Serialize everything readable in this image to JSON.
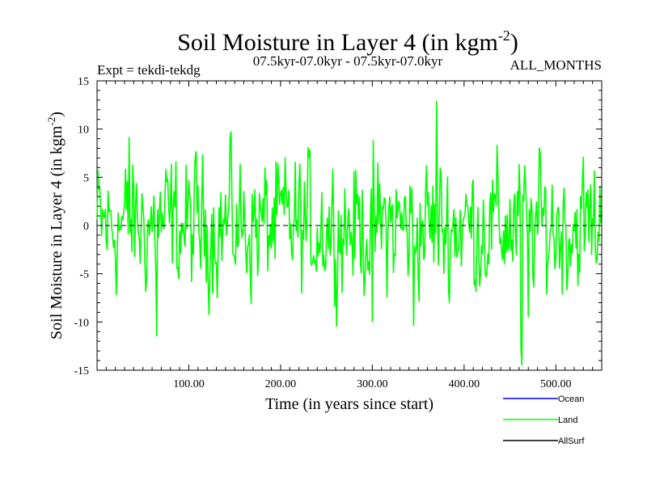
{
  "chart_data": {
    "type": "line",
    "title": "Soil Moisture in Layer 4 (in kgm",
    "title_sup": "-2",
    "title_close": ")",
    "subtitle_left": "Expt = tekdi-tekdg",
    "subtitle_center": "07.5kyr-07.0kyr - 07.5kyr-07.0kyr",
    "subtitle_right": "ALL_MONTHS",
    "xlabel": "Time (in years since start)",
    "ylabel": "Soil Moisture in Layer 4 (in kgm",
    "ylabel_sup": "-2",
    "ylabel_close": ")",
    "xlim": [
      0,
      550
    ],
    "ylim": [
      -15,
      15
    ],
    "x_ticks": [
      100,
      200,
      300,
      400,
      500
    ],
    "x_tick_labels": [
      "100.00",
      "200.00",
      "300.00",
      "400.00",
      "500.00"
    ],
    "y_ticks": [
      -15,
      -10,
      -5,
      0,
      5,
      10,
      15
    ],
    "y_tick_labels": [
      "-15",
      "-10",
      "-5",
      "0",
      "5",
      "10",
      "15"
    ],
    "zero_line": true,
    "legend_position": "bottom-right",
    "series": [
      {
        "name": "Ocean",
        "color": "#0000ff",
        "values": []
      },
      {
        "name": "Land",
        "color": "#00ff00",
        "x_start": 0,
        "x_step": 1,
        "approx_range": [
          -14.5,
          12.9
        ],
        "values": []
      },
      {
        "name": "AllSurf",
        "color": "#000000",
        "values": []
      }
    ]
  }
}
